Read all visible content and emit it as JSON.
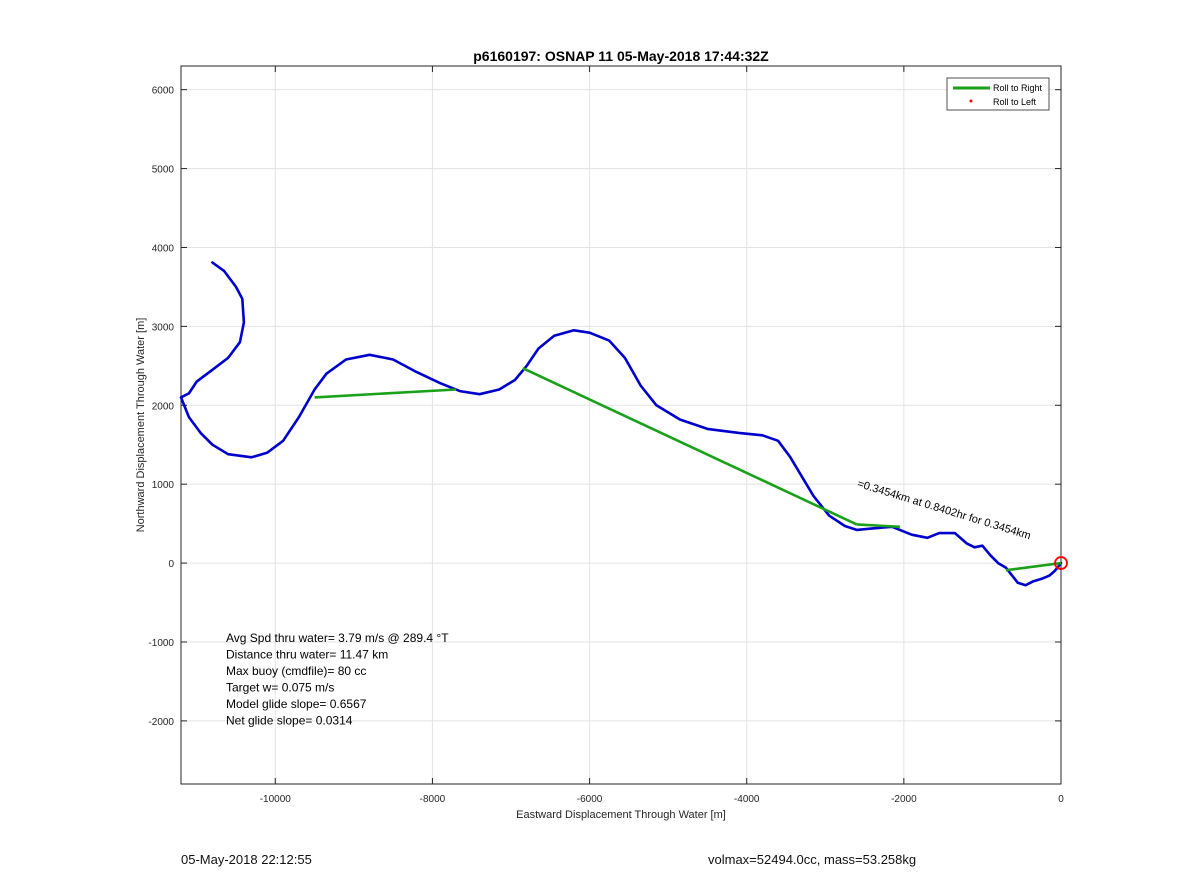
{
  "chart_data": {
    "type": "line",
    "title": "p6160197: OSNAP 11 05-May-2018 17:44:32Z",
    "xlabel": "Eastward Displacement Through Water [m]",
    "ylabel": "Northward Displacement Through Water [m]",
    "xlim": [
      -11200,
      0
    ],
    "ylim": [
      -2800,
      6300
    ],
    "xticks": [
      -10000,
      -8000,
      -6000,
      -4000,
      -2000,
      0
    ],
    "yticks": [
      -2000,
      -1000,
      0,
      1000,
      2000,
      3000,
      4000,
      5000,
      6000
    ],
    "grid": true,
    "legend": {
      "position": "top-right",
      "entries": [
        {
          "label": "Roll to Right",
          "color": "#1aa11a",
          "marker": "line"
        },
        {
          "label": "Roll to Left",
          "color": "#ff0000",
          "marker": "dot"
        }
      ]
    },
    "track": {
      "color": "#0000cc",
      "x": [
        -10800,
        -10650,
        -10500,
        -10420,
        -10400,
        -10450,
        -10600,
        -10800,
        -11000,
        -11100,
        -11200,
        -11100,
        -10950,
        -10800,
        -10600,
        -10300,
        -10100,
        -9900,
        -9700,
        -9500,
        -9350,
        -9100,
        -8800,
        -8500,
        -8200,
        -7900,
        -7650,
        -7400,
        -7150,
        -6950,
        -6800,
        -6650,
        -6450,
        -6200,
        -6000,
        -5750,
        -5550,
        -5350,
        -5150,
        -4850,
        -4500,
        -4100,
        -3800,
        -3600,
        -3450,
        -3300,
        -3150,
        -2950,
        -2750,
        -2600,
        -2400,
        -2150,
        -1900,
        -1700,
        -1550,
        -1350,
        -1200,
        -1100,
        -1000,
        -900,
        -800,
        -700,
        -550,
        -450,
        -350,
        -250,
        -150,
        -80,
        -30,
        0
      ],
      "y": [
        3810,
        3700,
        3500,
        3350,
        3050,
        2800,
        2600,
        2450,
        2300,
        2150,
        2100,
        1850,
        1650,
        1500,
        1380,
        1340,
        1400,
        1550,
        1850,
        2200,
        2400,
        2580,
        2640,
        2580,
        2420,
        2280,
        2180,
        2140,
        2200,
        2320,
        2500,
        2720,
        2880,
        2950,
        2920,
        2820,
        2600,
        2250,
        2000,
        1820,
        1700,
        1650,
        1620,
        1550,
        1350,
        1100,
        850,
        600,
        470,
        420,
        440,
        460,
        360,
        320,
        380,
        380,
        250,
        200,
        220,
        100,
        0,
        -60,
        -250,
        -280,
        -230,
        -200,
        -160,
        -100,
        -40,
        0
      ]
    },
    "roll_right_segments": [
      {
        "x": [
          -9500,
          -7700
        ],
        "y": [
          2100,
          2200
        ]
      },
      {
        "x": [
          -6850,
          -2600
        ],
        "y": [
          2470,
          490
        ]
      },
      {
        "x": [
          -2600,
          -2050
        ],
        "y": [
          490,
          460
        ]
      },
      {
        "x": [
          -700,
          0
        ],
        "y": [
          -90,
          0
        ]
      }
    ],
    "end_marker": {
      "x": 0,
      "y": 0,
      "color": "#ff0000"
    },
    "annotation_rotated": "=0.3454km at 0.8402hr for 0.3454km",
    "stats": [
      "Avg Spd thru water=  3.79 m/s @ 289.4 °T",
      "Distance thru water= 11.47 km",
      "Max buoy (cmdfile)= 80 cc",
      "Target w= 0.075 m/s",
      "Model glide slope= 0.6567",
      "Net glide slope= 0.0314"
    ]
  },
  "footer": {
    "left": "05-May-2018 22:12:55",
    "right": "volmax=52494.0cc, mass=53.258kg"
  }
}
